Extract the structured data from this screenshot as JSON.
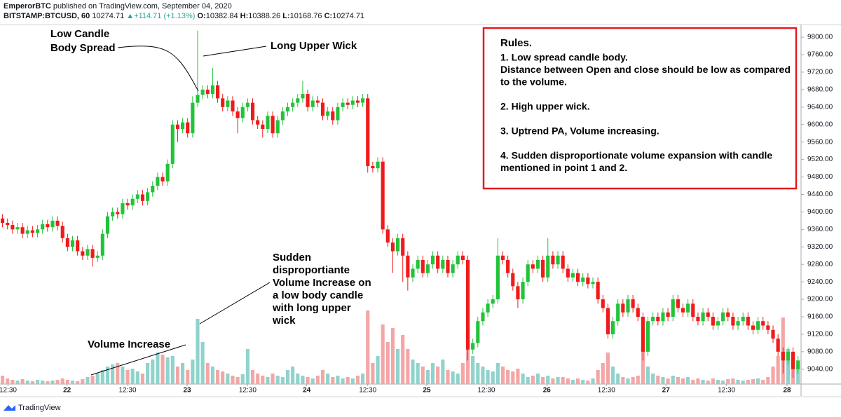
{
  "chart_data": {
    "type": "candlestick",
    "header": {
      "author": "EmperorBTC",
      "published": "published on TradingView.com, September 04, 2020",
      "symbol": "BITSTAMP:BTCUSD, 60",
      "last": "10274.71",
      "change": "▲+114.71 (+1.13%)",
      "o_label": "O:",
      "o": "10382.84",
      "h_label": "H:",
      "h": "10388.26",
      "l_label": "L:",
      "l": "10168.76",
      "c_label": "C:",
      "c": "10274.71"
    },
    "footer": "TradingView",
    "annotations": {
      "low_body": [
        "Low Candle",
        "Body Spread"
      ],
      "upper_wick": "Long Upper Wick",
      "sudden": [
        "Sudden",
        "disproportiante",
        "Volume Increase on",
        "a low body candle",
        "with long upper",
        "wick"
      ],
      "volume_increase": "Volume Increase"
    },
    "rules": {
      "title": "Rules.",
      "items": [
        [
          "1. Low spread candle body.",
          "Distance between Open and close should be low as compared",
          "to the volume."
        ],
        [
          "2. High upper wick."
        ],
        [
          "3. Uptrend PA, Volume increasing."
        ],
        [
          "4. Sudden disproportionate volume expansion with candle",
          "mentioned in point 1 and 2."
        ]
      ]
    },
    "up_color": "#22c33a",
    "down_color": "#f01a1a",
    "volume_up_color": "#8fd3cc",
    "volume_down_color": "#f4a6a6",
    "ylim": [
      9006,
      9829
    ],
    "yticks": [
      {
        "value": 9040,
        "label": "9040.00"
      },
      {
        "value": 9080,
        "label": "9080.00"
      },
      {
        "value": 9120,
        "label": "9120.00"
      },
      {
        "value": 9160,
        "label": "9160.00"
      },
      {
        "value": 9200,
        "label": "9200.00"
      },
      {
        "value": 9240,
        "label": "9240.00"
      },
      {
        "value": 9280,
        "label": "9280.00"
      },
      {
        "value": 9320,
        "label": "9320.00"
      },
      {
        "value": 9360,
        "label": "9360.00"
      },
      {
        "value": 9400,
        "label": "9400.00"
      },
      {
        "value": 9440,
        "label": "9440.00"
      },
      {
        "value": 9480,
        "label": "9480.00"
      },
      {
        "value": 9520,
        "label": "9520.00"
      },
      {
        "value": 9560,
        "label": "9560.00"
      },
      {
        "value": 9600,
        "label": "9600.00"
      },
      {
        "value": 9640,
        "label": "9640.00"
      },
      {
        "value": 9680,
        "label": "9680.00"
      },
      {
        "value": 9720,
        "label": "9720.00"
      },
      {
        "value": 9760,
        "label": "9760.00"
      },
      {
        "value": 9800,
        "label": "9800.00"
      }
    ],
    "xlim": [
      -0.5,
      159.6
    ],
    "xticks": [
      {
        "value": 1.1,
        "label": "12:30"
      },
      {
        "value": 12.9,
        "label": "22"
      },
      {
        "value": 25,
        "label": "12:30"
      },
      {
        "value": 36.9,
        "label": "23"
      },
      {
        "value": 49,
        "label": "12:30"
      },
      {
        "value": 60.8,
        "label": "24"
      },
      {
        "value": 73,
        "label": "12:30"
      },
      {
        "value": 84.8,
        "label": "25"
      },
      {
        "value": 96.7,
        "label": "12:30"
      },
      {
        "value": 108.8,
        "label": "26"
      },
      {
        "value": 120.7,
        "label": "12:30"
      },
      {
        "value": 132.6,
        "label": "27"
      },
      {
        "value": 144.7,
        "label": "12:30"
      },
      {
        "value": 156.8,
        "label": "28"
      }
    ],
    "volume_lim": [
      0,
      115
    ],
    "open": [
      9385,
      9375,
      9370,
      9360,
      9365,
      9350,
      9358,
      9352,
      9360,
      9372,
      9365,
      9380,
      9368,
      9340,
      9320,
      9335,
      9310,
      9300,
      9315,
      9295,
      9300,
      9350,
      9390,
      9400,
      9395,
      9420,
      9415,
      9430,
      9440,
      9425,
      9445,
      9460,
      9480,
      9470,
      9510,
      9600,
      9590,
      9605,
      9580,
      9650,
      9668,
      9680,
      9670,
      9690,
      9660,
      9640,
      9655,
      9630,
      9615,
      9640,
      9650,
      9610,
      9600,
      9590,
      9620,
      9580,
      9610,
      9630,
      9640,
      9650,
      9660,
      9670,
      9640,
      9655,
      9650,
      9620,
      9630,
      9610,
      9640,
      9650,
      9645,
      9655,
      9650,
      9660,
      9505,
      9500,
      9515,
      9360,
      9330,
      9310,
      9340,
      9300,
      9250,
      9270,
      9290,
      9260,
      9280,
      9300,
      9270,
      9290,
      9260,
      9280,
      9300,
      9290,
      9085,
      9100,
      9150,
      9170,
      9190,
      9200,
      9300,
      9290,
      9260,
      9230,
      9200,
      9240,
      9280,
      9270,
      9290,
      9250,
      9300,
      9280,
      9300,
      9270,
      9250,
      9260,
      9240,
      9250,
      9235,
      9240,
      9200,
      9180,
      9120,
      9150,
      9190,
      9170,
      9200,
      9180,
      9160,
      9080,
      9150,
      9160,
      9150,
      9170,
      9160,
      9200,
      9180,
      9170,
      9190,
      9160,
      9150,
      9170,
      9160,
      9140,
      9150,
      9170,
      9160,
      9140,
      9150,
      9160,
      9140,
      9130,
      9150,
      9140,
      9130,
      9110,
      9080,
      9060,
      9080,
      9040
    ],
    "high": [
      9395,
      9385,
      9380,
      9375,
      9375,
      9368,
      9368,
      9370,
      9382,
      9382,
      9390,
      9390,
      9378,
      9350,
      9345,
      9345,
      9320,
      9325,
      9325,
      9310,
      9360,
      9400,
      9410,
      9410,
      9430,
      9430,
      9440,
      9450,
      9450,
      9455,
      9470,
      9490,
      9490,
      9520,
      9610,
      9610,
      9615,
      9615,
      9665,
      9815,
      9690,
      9690,
      9730,
      9700,
      9670,
      9665,
      9665,
      9640,
      9650,
      9660,
      9660,
      9620,
      9610,
      9630,
      9630,
      9620,
      9640,
      9650,
      9660,
      9670,
      9700,
      9680,
      9665,
      9665,
      9660,
      9640,
      9640,
      9650,
      9660,
      9660,
      9665,
      9665,
      9670,
      9670,
      9515,
      9525,
      9525,
      9370,
      9340,
      9350,
      9350,
      9310,
      9280,
      9300,
      9300,
      9290,
      9310,
      9310,
      9300,
      9300,
      9290,
      9310,
      9310,
      9300,
      9110,
      9160,
      9180,
      9200,
      9210,
      9340,
      9310,
      9300,
      9270,
      9240,
      9250,
      9290,
      9290,
      9300,
      9300,
      9340,
      9310,
      9310,
      9310,
      9280,
      9270,
      9270,
      9260,
      9260,
      9250,
      9250,
      9210,
      9190,
      9160,
      9200,
      9200,
      9210,
      9210,
      9190,
      9170,
      9160,
      9170,
      9170,
      9180,
      9180,
      9210,
      9210,
      9190,
      9200,
      9200,
      9170,
      9180,
      9180,
      9170,
      9160,
      9180,
      9180,
      9170,
      9160,
      9170,
      9170,
      9150,
      9160,
      9160,
      9150,
      9140,
      9120,
      9090,
      9090,
      9090,
      9070
    ],
    "low": [
      9365,
      9360,
      9350,
      9350,
      9340,
      9340,
      9342,
      9342,
      9350,
      9355,
      9355,
      9358,
      9330,
      9310,
      9310,
      9300,
      9290,
      9290,
      9275,
      9285,
      9290,
      9340,
      9380,
      9385,
      9385,
      9405,
      9405,
      9420,
      9415,
      9415,
      9435,
      9450,
      9460,
      9460,
      9500,
      9560,
      9580,
      9570,
      9570,
      9640,
      9658,
      9660,
      9660,
      9650,
      9630,
      9630,
      9620,
      9580,
      9605,
      9630,
      9600,
      9590,
      9570,
      9580,
      9570,
      9570,
      9600,
      9620,
      9630,
      9640,
      9650,
      9630,
      9630,
      9640,
      9610,
      9610,
      9600,
      9600,
      9630,
      9635,
      9635,
      9640,
      9640,
      9490,
      9490,
      9490,
      9350,
      9320,
      9260,
      9300,
      9240,
      9220,
      9240,
      9260,
      9250,
      9250,
      9270,
      9260,
      9260,
      9250,
      9250,
      9270,
      9280,
      9060,
      9075,
      9090,
      9140,
      9160,
      9180,
      9190,
      9280,
      9250,
      9220,
      9180,
      9190,
      9230,
      9260,
      9260,
      9240,
      9240,
      9270,
      9270,
      9260,
      9240,
      9240,
      9230,
      9230,
      9225,
      9225,
      9190,
      9170,
      9110,
      9110,
      9140,
      9160,
      9160,
      9170,
      9150,
      9060,
      9070,
      9140,
      9140,
      9140,
      9150,
      9150,
      9170,
      9160,
      9160,
      9150,
      9140,
      9140,
      9150,
      9130,
      9130,
      9140,
      9150,
      9130,
      9130,
      9140,
      9130,
      9120,
      9120,
      9130,
      9120,
      9100,
      9070,
      9030,
      9050,
      9020,
      9030
    ],
    "close": [
      9375,
      9370,
      9360,
      9365,
      9350,
      9358,
      9352,
      9360,
      9372,
      9365,
      9380,
      9368,
      9340,
      9320,
      9335,
      9310,
      9300,
      9315,
      9295,
      9300,
      9350,
      9390,
      9400,
      9395,
      9420,
      9415,
      9430,
      9440,
      9425,
      9445,
      9460,
      9480,
      9470,
      9510,
      9600,
      9590,
      9605,
      9580,
      9650,
      9668,
      9680,
      9670,
      9690,
      9660,
      9640,
      9655,
      9630,
      9615,
      9640,
      9650,
      9610,
      9600,
      9590,
      9620,
      9580,
      9610,
      9630,
      9640,
      9650,
      9660,
      9670,
      9640,
      9655,
      9650,
      9620,
      9630,
      9610,
      9640,
      9650,
      9645,
      9655,
      9650,
      9660,
      9505,
      9500,
      9515,
      9360,
      9330,
      9310,
      9340,
      9300,
      9250,
      9270,
      9290,
      9260,
      9280,
      9300,
      9270,
      9290,
      9260,
      9280,
      9300,
      9290,
      9085,
      9100,
      9150,
      9170,
      9190,
      9200,
      9300,
      9290,
      9260,
      9230,
      9200,
      9240,
      9280,
      9270,
      9290,
      9250,
      9300,
      9280,
      9300,
      9270,
      9250,
      9260,
      9240,
      9250,
      9235,
      9240,
      9200,
      9180,
      9120,
      9150,
      9190,
      9170,
      9200,
      9180,
      9160,
      9080,
      9150,
      9160,
      9150,
      9170,
      9160,
      9200,
      9180,
      9170,
      9190,
      9160,
      9150,
      9170,
      9160,
      9140,
      9150,
      9170,
      9160,
      9140,
      9150,
      9160,
      9140,
      9130,
      9150,
      9140,
      9130,
      9110,
      9080,
      9060,
      9080,
      9040,
      9060
    ],
    "volume": [
      12,
      8,
      6,
      5,
      7,
      5,
      4,
      6,
      5,
      4,
      5,
      6,
      8,
      6,
      5,
      4,
      7,
      10,
      12,
      15,
      20,
      25,
      28,
      30,
      25,
      20,
      22,
      18,
      15,
      30,
      35,
      45,
      42,
      38,
      40,
      25,
      30,
      20,
      35,
      93,
      60,
      30,
      25,
      20,
      18,
      15,
      12,
      10,
      14,
      50,
      20,
      15,
      12,
      10,
      15,
      12,
      10,
      20,
      25,
      15,
      12,
      10,
      8,
      12,
      20,
      15,
      10,
      12,
      8,
      10,
      8,
      12,
      15,
      105,
      30,
      40,
      85,
      60,
      80,
      50,
      70,
      50,
      35,
      30,
      25,
      20,
      30,
      25,
      35,
      20,
      18,
      15,
      30,
      80,
      40,
      30,
      25,
      20,
      18,
      30,
      25,
      20,
      18,
      22,
      15,
      10,
      12,
      15,
      10,
      12,
      8,
      10,
      10,
      8,
      6,
      8,
      6,
      5,
      8,
      20,
      30,
      45,
      25,
      15,
      10,
      8,
      10,
      12,
      50,
      25,
      15,
      12,
      10,
      8,
      12,
      10,
      8,
      10,
      6,
      8,
      6,
      5,
      8,
      6,
      5,
      7,
      8,
      6,
      5,
      6,
      7,
      8,
      6,
      10,
      25,
      40,
      95,
      50,
      30,
      25
    ]
  }
}
